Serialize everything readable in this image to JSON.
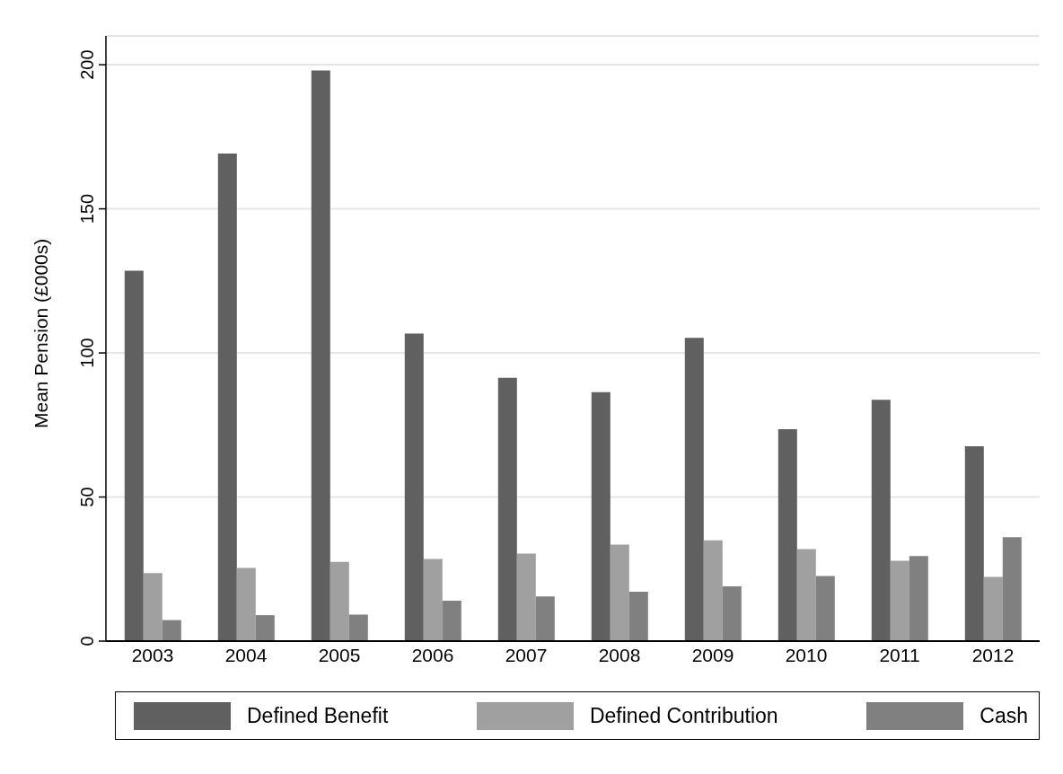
{
  "chart_data": {
    "type": "bar",
    "ylabel": "Mean Pension (£000s)",
    "categories": [
      "2003",
      "2004",
      "2005",
      "2006",
      "2007",
      "2008",
      "2009",
      "2010",
      "2011",
      "2012"
    ],
    "series": [
      {
        "name": "Defined Benefit",
        "color": "#606060",
        "values": [
          128.5,
          169.2,
          198.0,
          106.7,
          91.4,
          86.4,
          105.2,
          73.5,
          83.7,
          67.6
        ]
      },
      {
        "name": "Defined Contribution",
        "color": "#a0a0a0",
        "values": [
          23.6,
          25.4,
          27.5,
          28.5,
          30.4,
          33.5,
          35.0,
          31.9,
          27.9,
          22.3
        ]
      },
      {
        "name": "Cash",
        "color": "#808080",
        "values": [
          7.3,
          9.0,
          9.2,
          14.0,
          15.5,
          17.1,
          19.0,
          22.6,
          29.5,
          36.1
        ]
      }
    ],
    "ylim": [
      0,
      210
    ],
    "yticks": [
      0,
      50,
      100,
      150,
      200
    ],
    "grid": "y",
    "legend": "bottom"
  }
}
